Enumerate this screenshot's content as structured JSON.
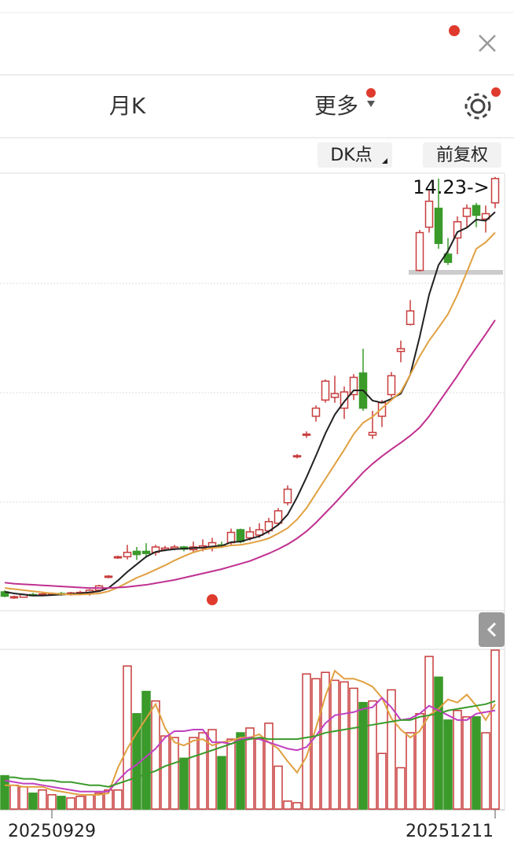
{
  "tabs": [
    "月K",
    "更多"
  ],
  "buttons": [
    "DK点",
    "前复权"
  ],
  "chart_data": {
    "type": "candlestick",
    "annotation": "14.23->",
    "categories": [
      null,
      null,
      null,
      null,
      null,
      "20250929",
      null,
      null,
      null,
      null,
      null,
      null,
      null,
      null,
      null,
      null,
      null,
      null,
      null,
      null,
      null,
      null,
      null,
      null,
      null,
      null,
      null,
      null,
      null,
      null,
      null,
      null,
      null,
      null,
      null,
      null,
      null,
      null,
      null,
      null,
      null,
      null,
      null,
      null,
      null,
      null,
      null,
      null,
      null,
      null,
      null,
      null,
      "20251211"
    ],
    "open": [
      6.55,
      6.44,
      6.45,
      6.5,
      6.49,
      6.5,
      6.52,
      6.5,
      6.53,
      6.52,
      6.58,
      6.82,
      7.18,
      7.2,
      7.3,
      7.3,
      7.28,
      7.33,
      7.35,
      7.38,
      7.33,
      7.36,
      7.38,
      7.42,
      7.46,
      7.7,
      7.55,
      7.6,
      7.68,
      7.82,
      8.2,
      9.05,
      9.45,
      9.8,
      10.1,
      10.15,
      9.95,
      10.2,
      10.6,
      9.45,
      9.8,
      10.2,
      11.0,
      11.5,
      12.5,
      13.3,
      13.65,
      12.8,
      13.1,
      13.5,
      13.7,
      13.45,
      13.75
    ],
    "high": [
      6.58,
      6.48,
      6.52,
      6.53,
      6.53,
      6.54,
      6.55,
      6.55,
      6.57,
      6.6,
      6.68,
      6.86,
      7.22,
      7.42,
      7.38,
      7.45,
      7.42,
      7.4,
      7.42,
      7.4,
      7.48,
      7.52,
      7.55,
      7.48,
      7.72,
      7.72,
      7.75,
      7.82,
      7.92,
      8.1,
      8.52,
      9.1,
      9.52,
      10.0,
      10.48,
      10.55,
      10.35,
      10.58,
      11.05,
      9.9,
      10.1,
      10.62,
      11.2,
      11.95,
      13.25,
      13.98,
      14.2,
      13.1,
      13.5,
      13.72,
      13.75,
      13.7,
      14.23
    ],
    "low": [
      6.45,
      6.42,
      6.44,
      6.47,
      6.47,
      6.48,
      6.48,
      6.48,
      6.51,
      6.48,
      6.56,
      6.8,
      7.16,
      7.15,
      7.14,
      7.18,
      7.22,
      7.3,
      7.32,
      7.3,
      7.28,
      7.3,
      7.3,
      7.36,
      7.42,
      7.45,
      7.5,
      7.55,
      7.62,
      7.78,
      8.15,
      9.02,
      9.4,
      9.7,
      10.05,
      10.05,
      9.75,
      10.1,
      9.9,
      9.38,
      9.6,
      10.15,
      10.8,
      11.48,
      12.48,
      13.2,
      12.9,
      12.6,
      12.8,
      13.3,
      13.3,
      13.2,
      13.65
    ],
    "close": [
      6.47,
      6.46,
      6.5,
      6.49,
      6.51,
      6.52,
      6.5,
      6.53,
      6.54,
      6.58,
      6.66,
      6.84,
      7.2,
      7.28,
      7.24,
      7.26,
      7.38,
      7.36,
      7.38,
      7.34,
      7.38,
      7.4,
      7.46,
      7.4,
      7.65,
      7.48,
      7.66,
      7.7,
      7.85,
      8.05,
      8.45,
      9.07,
      9.47,
      9.95,
      10.45,
      10.22,
      10.25,
      10.52,
      9.95,
      9.5,
      10.05,
      10.55,
      11.05,
      11.75,
      13.2,
      13.78,
      13.0,
      12.65,
      13.4,
      13.65,
      13.52,
      13.55,
      14.2
    ],
    "up_color": "#c83c3c",
    "down_color": "#3a9a2a",
    "ylim": [
      6.2,
      14.3
    ],
    "ma_lines": [
      {
        "color": "#222222",
        "values": [
          6.55,
          6.52,
          6.5,
          6.48,
          6.48,
          6.49,
          6.5,
          6.51,
          6.52,
          6.54,
          6.56,
          6.62,
          6.76,
          6.92,
          7.06,
          7.2,
          7.29,
          7.32,
          7.34,
          7.35,
          7.36,
          7.37,
          7.39,
          7.4,
          7.47,
          7.48,
          7.53,
          7.58,
          7.67,
          7.79,
          7.98,
          8.3,
          8.67,
          9.07,
          9.48,
          9.83,
          10.07,
          10.28,
          10.28,
          10.09,
          10.05,
          10.12,
          10.22,
          10.57,
          11.27,
          12.05,
          12.6,
          12.86,
          13.21,
          13.29,
          13.44,
          13.42,
          13.58
        ]
      },
      {
        "color": "#e0a040",
        "values": [
          6.62,
          6.6,
          6.58,
          6.56,
          6.54,
          6.52,
          6.51,
          6.5,
          6.5,
          6.51,
          6.52,
          6.56,
          6.63,
          6.72,
          6.81,
          6.88,
          6.96,
          7.04,
          7.13,
          7.21,
          7.28,
          7.33,
          7.36,
          7.38,
          7.41,
          7.42,
          7.45,
          7.49,
          7.54,
          7.63,
          7.73,
          7.89,
          8.1,
          8.37,
          8.64,
          8.91,
          9.18,
          9.47,
          9.68,
          9.79,
          9.95,
          10.1,
          10.25,
          10.57,
          10.91,
          11.2,
          11.44,
          11.69,
          12.05,
          12.47,
          12.9,
          13.02,
          13.2
        ]
      },
      {
        "color": "#c03090",
        "values": [
          6.72,
          6.7,
          6.69,
          6.68,
          6.67,
          6.66,
          6.65,
          6.64,
          6.63,
          6.62,
          6.62,
          6.62,
          6.63,
          6.64,
          6.66,
          6.68,
          6.71,
          6.74,
          6.77,
          6.81,
          6.85,
          6.89,
          6.93,
          6.97,
          7.02,
          7.07,
          7.12,
          7.19,
          7.26,
          7.34,
          7.43,
          7.54,
          7.67,
          7.83,
          8.01,
          8.19,
          8.38,
          8.57,
          8.76,
          8.92,
          9.06,
          9.19,
          9.31,
          9.44,
          9.59,
          9.8,
          10.05,
          10.3,
          10.55,
          10.82,
          11.07,
          11.32,
          11.58
        ]
      }
    ],
    "volume": {
      "ylim": [
        0,
        100
      ],
      "values": [
        21,
        15,
        14,
        10,
        12,
        9,
        8,
        7,
        8,
        9,
        10,
        12,
        12,
        90,
        60,
        74,
        68,
        46,
        45,
        32,
        45,
        48,
        50,
        33,
        44,
        48,
        51,
        44,
        54,
        27,
        5,
        4,
        85,
        82,
        86,
        81,
        80,
        76,
        67,
        68,
        35,
        75,
        26,
        48,
        60,
        96,
        83,
        56,
        62,
        58,
        58,
        48,
        100
      ],
      "ma_lines": [
        {
          "color": "#e0a040",
          "values": [
            15,
            15,
            14,
            14,
            14,
            12,
            11,
            10,
            9,
            9,
            9,
            10,
            26,
            38,
            48,
            57,
            66,
            51,
            42,
            40,
            43,
            44,
            40,
            42,
            43,
            45,
            45,
            47,
            42,
            38,
            30,
            23,
            33,
            51,
            71,
            87,
            82,
            82,
            80,
            77,
            70,
            57,
            50,
            45,
            49,
            59,
            63,
            69,
            67,
            72,
            65,
            56,
            66
          ]
        },
        {
          "color": "#c040c0",
          "values": [
            18,
            17,
            16,
            16,
            15,
            14,
            13,
            12,
            11,
            11,
            11,
            11,
            18,
            24,
            28,
            33,
            38,
            45,
            49,
            49,
            50,
            50,
            42,
            42,
            41,
            44,
            45,
            44,
            42,
            40,
            38,
            37,
            39,
            46,
            54,
            59,
            60,
            61,
            63,
            64,
            70,
            64,
            56,
            57,
            60,
            65,
            62,
            59,
            56,
            56,
            60,
            61,
            62
          ]
        },
        {
          "color": "#3a9a2a",
          "values": [
            20,
            20,
            19,
            19,
            18,
            18,
            17,
            17,
            16,
            15,
            15,
            14,
            16,
            18,
            20,
            22,
            24,
            27,
            29,
            31,
            33,
            35,
            37,
            39,
            41,
            43,
            44,
            45,
            44,
            44,
            44,
            44,
            45,
            46,
            48,
            49,
            50,
            51,
            52,
            53,
            54,
            55,
            56,
            56,
            58,
            59,
            60,
            62,
            63,
            64,
            65,
            66,
            68
          ]
        }
      ]
    }
  }
}
